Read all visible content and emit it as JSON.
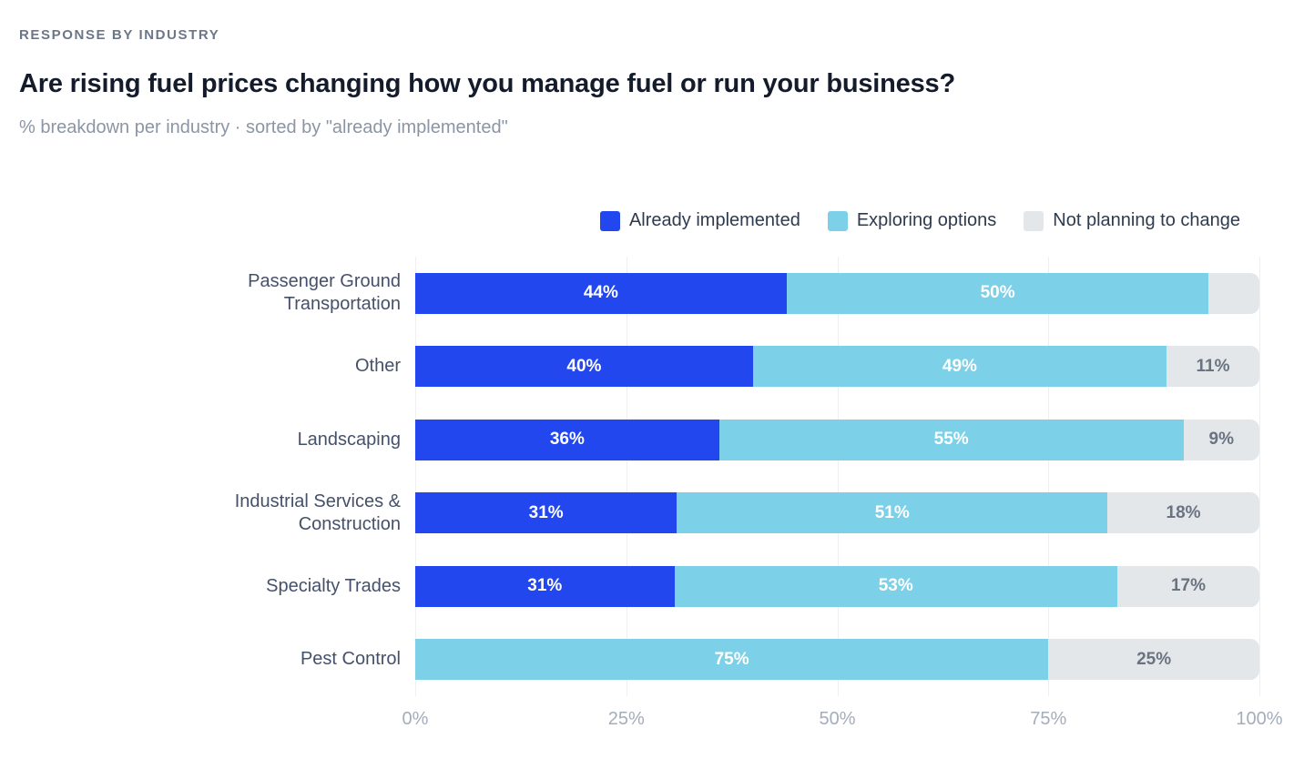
{
  "header": {
    "eyebrow": "RESPONSE BY INDUSTRY",
    "title": "Are rising fuel prices changing how you manage fuel or run your business?",
    "subtitle": "% breakdown per industry · sorted by \"already implemented\""
  },
  "legend": {
    "items": [
      {
        "label": "Already implemented",
        "key": "already"
      },
      {
        "label": "Exploring options",
        "key": "exploring"
      },
      {
        "label": "Not planning to change",
        "key": "not_planning"
      }
    ]
  },
  "colors": {
    "already": "#2347ee",
    "exploring": "#7cd0e8",
    "not_planning": "#e4e7ea",
    "grid": "#edeff2",
    "axis_text": "#a4adba",
    "category_text": "#45506a",
    "title_text": "#141b2b"
  },
  "chart_data": {
    "type": "stacked-bar-horizontal",
    "title": "Are rising fuel prices changing how you manage fuel or run your business?",
    "subtitle": "% breakdown per industry · sorted by \"already implemented\"",
    "xlabel": "",
    "ylabel": "",
    "xlim": [
      0,
      100
    ],
    "grid": true,
    "legend_position": "top-right",
    "x_ticks": [
      "0%",
      "25%",
      "50%",
      "75%",
      "100%"
    ],
    "categories": [
      "Passenger Ground Transportation",
      "Other",
      "Landscaping",
      "Industrial Services & Construction",
      "Specialty Trades",
      "Pest Control"
    ],
    "series": [
      {
        "name": "Already implemented",
        "values": [
          44,
          40,
          36,
          31,
          31,
          0
        ]
      },
      {
        "name": "Exploring options",
        "values": [
          50,
          49,
          55,
          51,
          53,
          75
        ]
      },
      {
        "name": "Not planning to change",
        "values": [
          6,
          11,
          9,
          18,
          17,
          25
        ]
      }
    ],
    "rows": [
      {
        "category": "Passenger Ground Transportation",
        "segments": [
          {
            "key": "already",
            "value": 44,
            "label": "44%"
          },
          {
            "key": "exploring",
            "value": 50,
            "label": "50%"
          },
          {
            "key": "not_planning",
            "value": 6,
            "label": ""
          }
        ]
      },
      {
        "category": "Other",
        "segments": [
          {
            "key": "already",
            "value": 40,
            "label": "40%"
          },
          {
            "key": "exploring",
            "value": 49,
            "label": "49%"
          },
          {
            "key": "not_planning",
            "value": 11,
            "label": "11%"
          }
        ]
      },
      {
        "category": "Landscaping",
        "segments": [
          {
            "key": "already",
            "value": 36,
            "label": "36%"
          },
          {
            "key": "exploring",
            "value": 55,
            "label": "55%"
          },
          {
            "key": "not_planning",
            "value": 9,
            "label": "9%"
          }
        ]
      },
      {
        "category": "Industrial Services & Construction",
        "segments": [
          {
            "key": "already",
            "value": 31,
            "label": "31%"
          },
          {
            "key": "exploring",
            "value": 51,
            "label": "51%"
          },
          {
            "key": "not_planning",
            "value": 18,
            "label": "18%"
          }
        ]
      },
      {
        "category": "Specialty Trades",
        "segments": [
          {
            "key": "already",
            "value": 31,
            "label": "31%"
          },
          {
            "key": "exploring",
            "value": 53,
            "label": "53%"
          },
          {
            "key": "not_planning",
            "value": 17,
            "label": "17%"
          }
        ]
      },
      {
        "category": "Pest Control",
        "segments": [
          {
            "key": "exploring",
            "value": 75,
            "label": "75%"
          },
          {
            "key": "not_planning",
            "value": 25,
            "label": "25%"
          }
        ]
      }
    ]
  }
}
